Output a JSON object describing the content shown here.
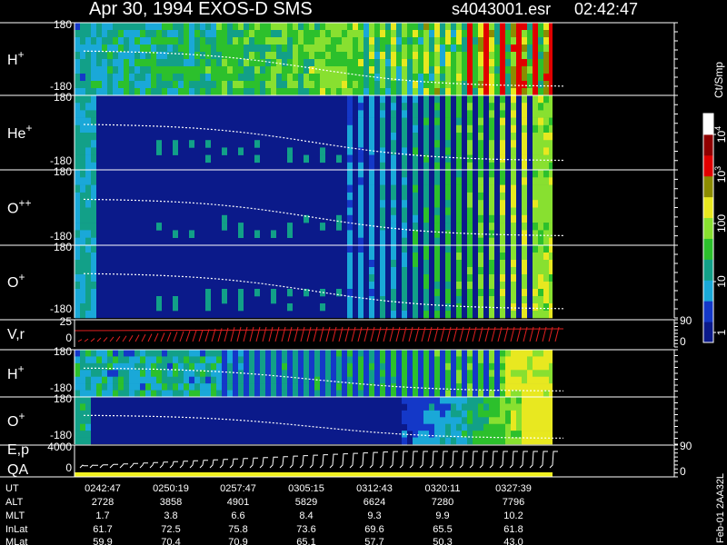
{
  "header": {
    "title": "Apr 30, 1994    EXOS-D SMS",
    "file": "s4043001.esr",
    "time": "02:42:47"
  },
  "panels": [
    {
      "label": "H",
      "sup": "+",
      "top": "180",
      "bottom": "-180"
    },
    {
      "label": "He",
      "sup": "+",
      "top": "180",
      "bottom": "-180"
    },
    {
      "label": "O",
      "sup": "++",
      "top": "180",
      "bottom": "-180"
    },
    {
      "label": "O",
      "sup": "+",
      "top": "180",
      "bottom": "-180"
    },
    {
      "label": "V,r",
      "top": "25",
      "bottom": "0",
      "right_top": "90",
      "right_bottom": "0"
    },
    {
      "label": "H",
      "sup": "+",
      "top": "180",
      "bottom": "-180"
    },
    {
      "label": "O",
      "sup": "+",
      "top": "180",
      "bottom": "-180"
    },
    {
      "label": "E,p",
      "label2": "QA",
      "top": "4000",
      "bottom": "0",
      "right_top": "90",
      "right_bottom": "0"
    }
  ],
  "colorbar": {
    "title": "Ct/Smp",
    "ticks": [
      {
        "base": "10",
        "sup": "4"
      },
      {
        "base": "10",
        "sup": "3"
      },
      {
        "base": "100"
      },
      {
        "base": "10"
      },
      {
        "base": "1"
      }
    ]
  },
  "footer": {
    "rows": [
      [
        "UT",
        "0242:47",
        "0250:19",
        "0257:47",
        "0305:15",
        "0312:43",
        "0320:11",
        "0327:39"
      ],
      [
        "ALT",
        "2728",
        "3858",
        "4901",
        "5829",
        "6624",
        "7280",
        "7796"
      ],
      [
        "MLT",
        "1.7",
        "3.8",
        "6.6",
        "8.4",
        "9.3",
        "9.9",
        "10.2"
      ],
      [
        "InLat",
        "61.7",
        "72.5",
        "75.8",
        "73.6",
        "69.6",
        "65.5",
        "61.8"
      ],
      [
        "MLat",
        "59.9",
        "70.4",
        "70.9",
        "65.1",
        "57.7",
        "50.3",
        "43.0"
      ]
    ]
  },
  "side_note": "Feb-01 2AA32L"
}
